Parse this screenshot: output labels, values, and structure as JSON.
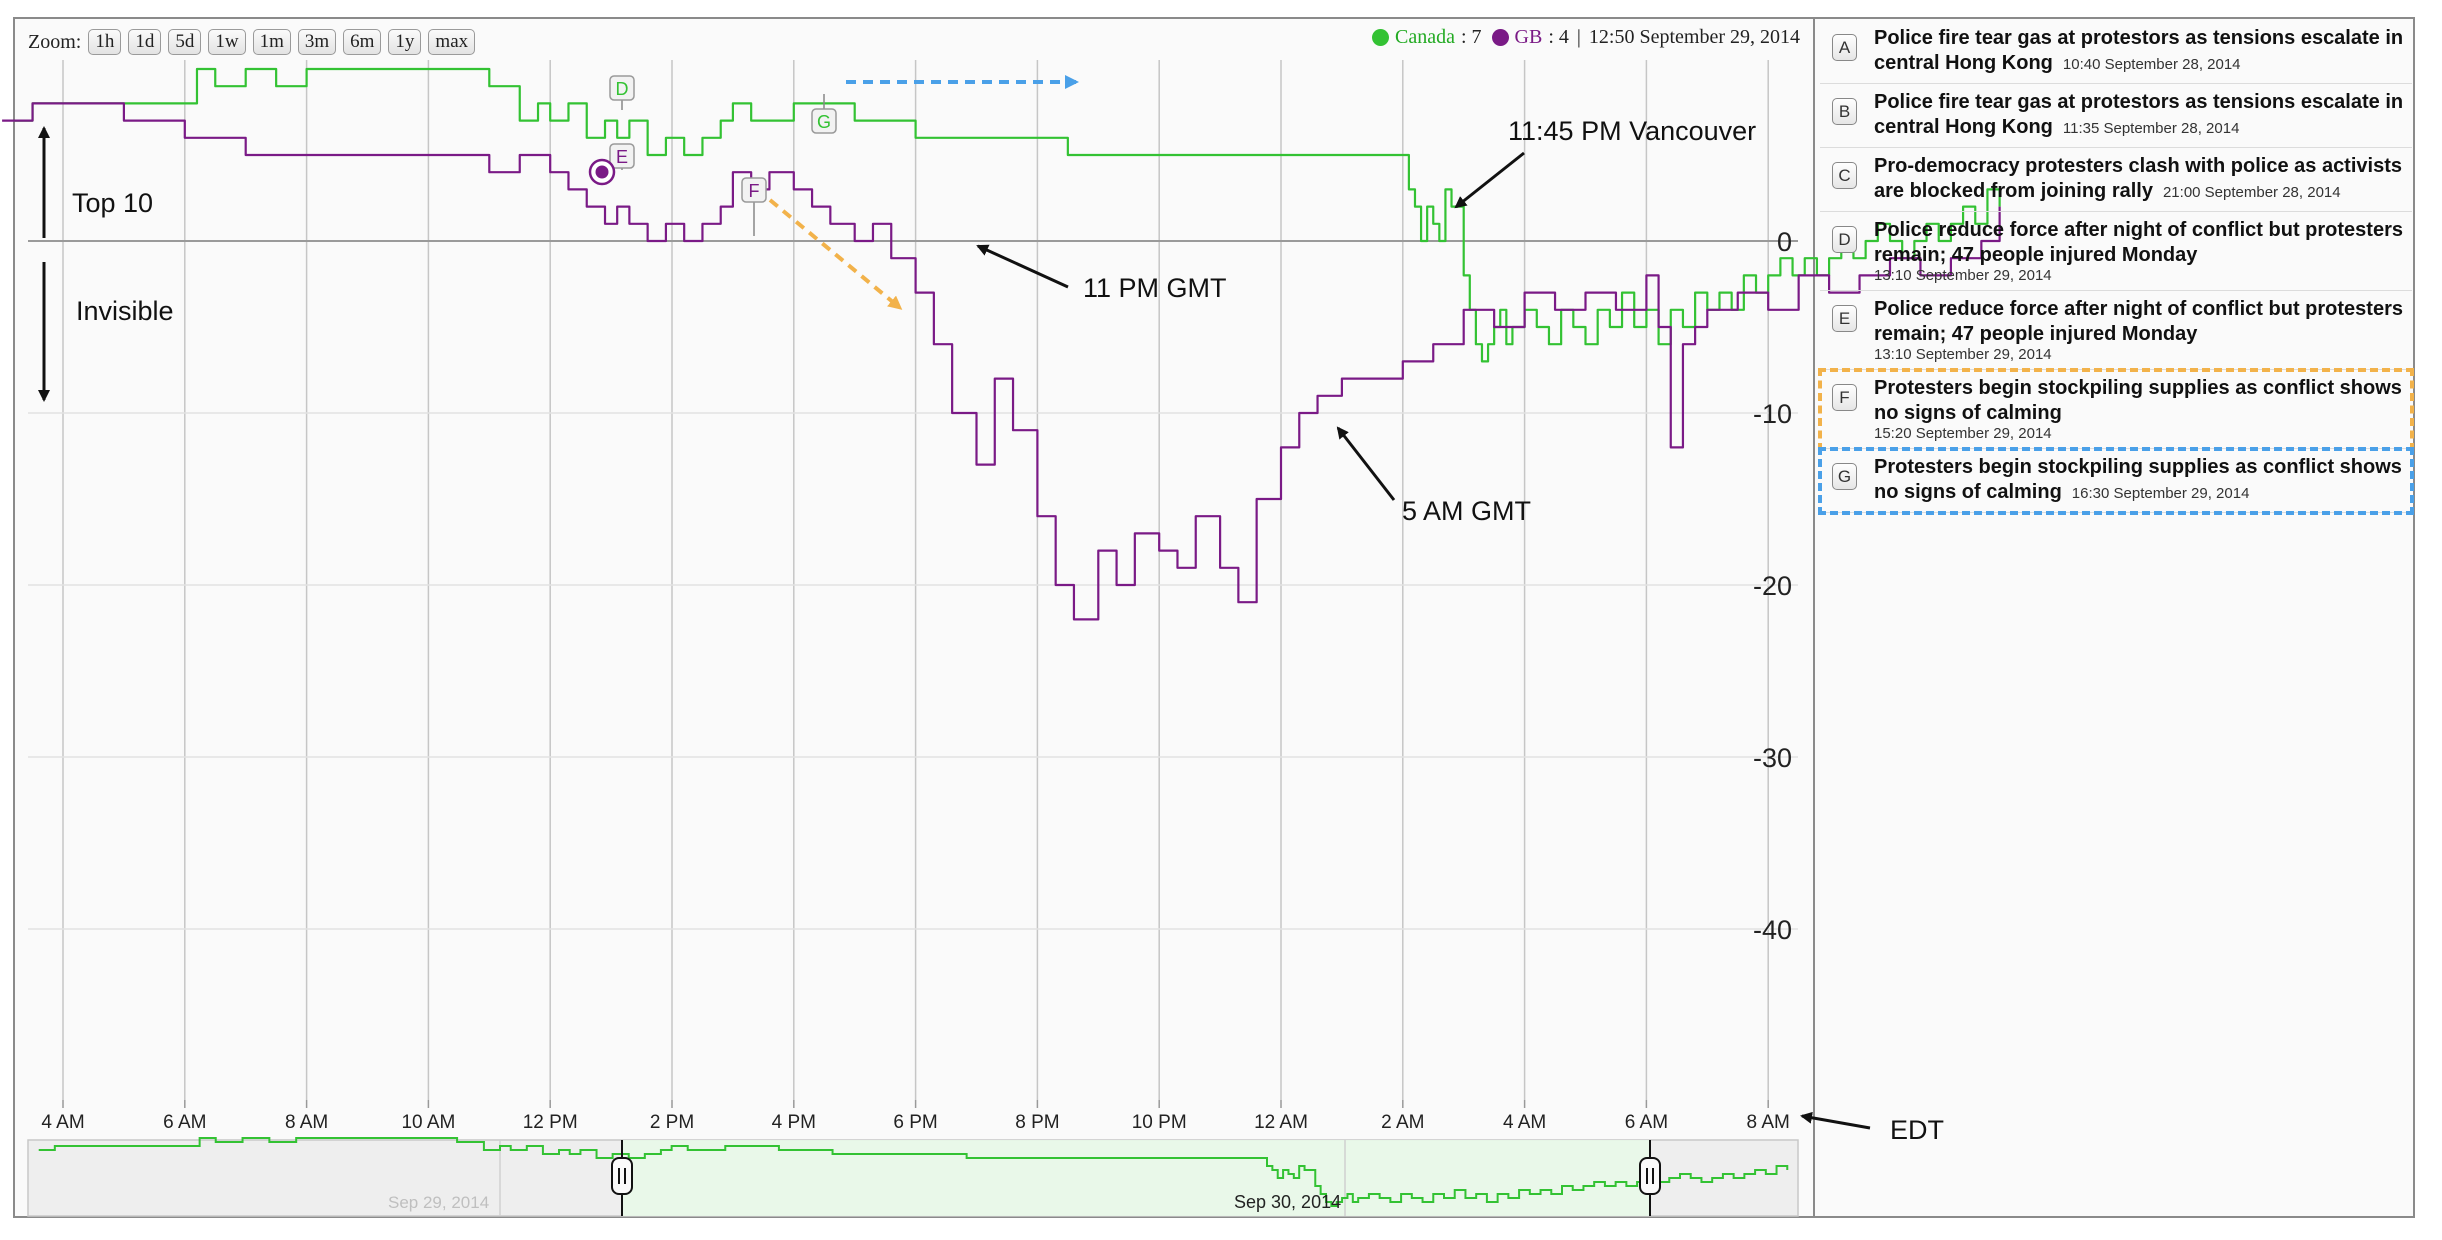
{
  "toolbar": {
    "zoom_label": "Zoom:",
    "buttons": [
      "1h",
      "1d",
      "5d",
      "1w",
      "1m",
      "3m",
      "6m",
      "1y",
      "max"
    ]
  },
  "legend": {
    "canada_label": "Canada",
    "canada_value": ": 7",
    "gb_label": "GB",
    "gb_value": ": 4",
    "timestamp": "12:50 September 29, 2014"
  },
  "colors": {
    "canada": "#33c233",
    "gb": "#7a1a86",
    "orange_dash": "#f2b24a",
    "blue_dash": "#4aa0e8"
  },
  "news": [
    {
      "letter": "A",
      "title": "Police fire tear gas at protestors as tensions escalate in central Hong Kong",
      "time": "10:40 September 28, 2014"
    },
    {
      "letter": "B",
      "title": "Police fire tear gas at protestors as tensions escalate in central Hong Kong",
      "time": "11:35 September 28, 2014"
    },
    {
      "letter": "C",
      "title": "Pro-democracy protesters clash with police as activists are blocked from joining rally",
      "time": "21:00 September 28, 2014"
    },
    {
      "letter": "D",
      "title": "Police reduce force after night of conflict but protesters remain; 47 people injured Monday",
      "time": "13:10 September 29, 2014"
    },
    {
      "letter": "E",
      "title": "Police reduce force after night of conflict but protesters remain; 47 people injured Monday",
      "time": "13:10 September 29, 2014"
    },
    {
      "letter": "F",
      "title": "Protesters begin stockpiling supplies as conflict shows no signs of calming",
      "time": "15:20 September 29, 2014"
    },
    {
      "letter": "G",
      "title": "Protesters begin stockpiling supplies as conflict shows no signs of calming",
      "time": "16:30 September 29, 2014"
    }
  ],
  "annotations": {
    "top10": "Top 10",
    "invisible": "Invisible",
    "gmt11": "11 PM GMT",
    "vancouver": "11:45 PM Vancouver",
    "gmt5": "5 AM GMT",
    "edt": "EDT"
  },
  "navigator": {
    "date1": "Sep 29, 2014",
    "date2": "Sep 30, 2014"
  },
  "chart_data": {
    "type": "line",
    "x_tick_labels": [
      "4 AM",
      "6 AM",
      "8 AM",
      "10 AM",
      "12 PM",
      "2 PM",
      "4 PM",
      "6 PM",
      "8 PM",
      "10 PM",
      "12 AM",
      "2 AM",
      "4 AM",
      "6 AM",
      "8 AM"
    ],
    "y_ticks": [
      0,
      -10,
      -20,
      -30,
      -40
    ],
    "ylim": [
      -50,
      8
    ],
    "series": [
      {
        "name": "Canada",
        "x": [
          3.2,
          3.5,
          4.0,
          6.0,
          6.2,
          6.5,
          7.0,
          7.5,
          8.0,
          9.0,
          10.0,
          11.0,
          11.5,
          11.8,
          12.0,
          12.3,
          12.6,
          12.9,
          13.1,
          13.3,
          13.6,
          13.9,
          14.2,
          14.5,
          14.8,
          15.0,
          15.3,
          15.6,
          16.0,
          16.5,
          17.0,
          18.0,
          19.0,
          20.0,
          20.5,
          21.0,
          22.0,
          23.0,
          24.0,
          25.0,
          26.0,
          26.1,
          26.2,
          26.3,
          26.4,
          26.5,
          26.6,
          26.7,
          26.8,
          27.0,
          27.1,
          27.2,
          27.3,
          27.4,
          27.5,
          27.6,
          27.7,
          27.8,
          28.0,
          28.2,
          28.4,
          28.6,
          28.8,
          29.0,
          29.2,
          29.4,
          29.6,
          29.8,
          30.0,
          30.2,
          30.4,
          30.6,
          30.8,
          31.0,
          31.2,
          31.4,
          31.6,
          31.8,
          32.0,
          32.2,
          32.4,
          32.6,
          32.8,
          33.0,
          33.2,
          33.4,
          33.6,
          33.8,
          34.0,
          34.2,
          34.4,
          34.6,
          34.8,
          35.0,
          35.2,
          35.4,
          35.6,
          35.8
        ],
        "values": [
          7,
          8,
          8,
          8,
          10,
          9,
          10,
          9,
          10,
          10,
          10,
          9,
          7,
          8,
          7,
          8,
          6,
          7,
          6,
          7,
          5,
          6,
          5,
          6,
          7,
          8,
          7,
          7,
          8,
          8,
          7,
          6,
          6,
          6,
          5,
          5,
          5,
          5,
          5,
          5,
          5,
          3,
          2,
          0,
          2,
          1,
          0,
          3,
          2,
          -2,
          -4,
          -6,
          -7,
          -6,
          -5,
          -4,
          -6,
          -5,
          -4,
          -5,
          -6,
          -4,
          -5,
          -6,
          -4,
          -5,
          -3,
          -5,
          -4,
          -6,
          -4,
          -5,
          -3,
          -4,
          -3,
          -4,
          -2,
          -3,
          -2,
          -1,
          -2,
          -1,
          -2,
          -1,
          0,
          -1,
          0,
          1,
          0,
          -1,
          0,
          1,
          0,
          1,
          2,
          1,
          3,
          2
        ],
        "color": "#33c233"
      },
      {
        "name": "GB",
        "x": [
          3.0,
          3.5,
          4.0,
          5.0,
          6.0,
          6.5,
          7.0,
          8.0,
          9.0,
          10.0,
          11.0,
          11.5,
          12.0,
          12.3,
          12.6,
          12.9,
          13.1,
          13.3,
          13.6,
          13.9,
          14.2,
          14.5,
          14.8,
          15.0,
          15.3,
          15.6,
          16.0,
          16.3,
          16.6,
          17.0,
          17.3,
          17.6,
          18.0,
          18.3,
          18.6,
          19.0,
          19.3,
          19.6,
          20.0,
          20.3,
          20.6,
          21.0,
          21.3,
          21.6,
          22.0,
          22.3,
          22.6,
          23.0,
          23.3,
          23.6,
          24.0,
          24.3,
          24.6,
          25.0,
          25.5,
          26.0,
          26.5,
          27.0,
          27.5,
          28.0,
          28.5,
          29.0,
          29.5,
          30.0,
          30.2,
          30.4,
          30.6,
          30.8,
          31.0,
          31.5,
          32.0,
          32.5,
          33.0,
          33.5,
          34.0,
          34.5,
          35.0,
          35.5,
          35.8
        ],
        "values": [
          7,
          8,
          8,
          7,
          6,
          6,
          5,
          5,
          5,
          5,
          4,
          5,
          4,
          3,
          2,
          1,
          2,
          1,
          0,
          1,
          0,
          1,
          2,
          4,
          3,
          4,
          3,
          2,
          1,
          0,
          1,
          -1,
          -3,
          -6,
          -10,
          -13,
          -8,
          -11,
          -16,
          -20,
          -22,
          -18,
          -20,
          -17,
          -18,
          -19,
          -16,
          -19,
          -21,
          -15,
          -12,
          -10,
          -9,
          -8,
          -8,
          -7,
          -6,
          -4,
          -5,
          -3,
          -4,
          -3,
          -4,
          -2,
          -5,
          -12,
          -6,
          -5,
          -4,
          -3,
          -4,
          -2,
          -3,
          -2,
          -1,
          -2,
          -1,
          0,
          2
        ],
        "color": "#7a1a86"
      }
    ],
    "event_flags": [
      "D",
      "E",
      "F",
      "G"
    ]
  }
}
